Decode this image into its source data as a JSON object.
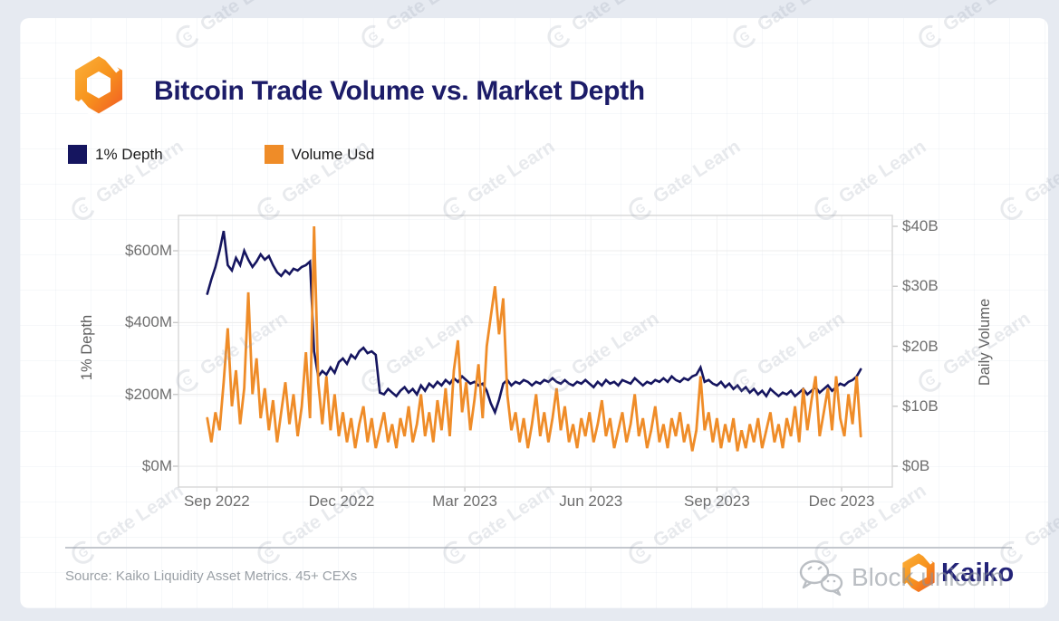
{
  "page": {
    "watermark_text": "Gate Learn",
    "overlay_watermark": "Block unicorn",
    "background_color": "#e6eaf1",
    "card_color": "#ffffff"
  },
  "header": {
    "title": "Bitcoin Trade Volume vs. Market Depth",
    "title_color": "#1c1c68",
    "logo": "kaiko-hexagon"
  },
  "legend": [
    {
      "label": "1% Depth",
      "color": "#15155f"
    },
    {
      "label": "Volume Usd",
      "color": "#ef8c28"
    }
  ],
  "footer": {
    "source": "Source: Kaiko Liquidity Asset Metrics. 45+ CEXs",
    "brand": "Kaiko"
  },
  "chart_data": {
    "type": "line",
    "title": "Bitcoin Trade Volume vs. Market Depth",
    "grid": true,
    "legend_position": "top-left",
    "x_axis": {
      "tick_labels": [
        "Sep 2022",
        "Dec 2022",
        "Mar 2023",
        "Jun 2023",
        "Sep 2023",
        "Dec 2023"
      ],
      "tick_days": [
        7,
        98,
        188,
        280,
        372,
        463
      ],
      "day_min": -21,
      "day_max": 500,
      "note": "day 0 = late Aug 2022, daily data ending mid Dec 2023"
    },
    "left_axis": {
      "label": "1% Depth",
      "unit": "$M",
      "ticks": [
        0,
        200,
        400,
        600
      ],
      "tick_labels": [
        "$0M",
        "$200M",
        "$400M",
        "$600M"
      ],
      "range": [
        0,
        700
      ]
    },
    "right_axis": {
      "label": "Daily Volume",
      "unit": "$B",
      "ticks": [
        0,
        10,
        20,
        30,
        40
      ],
      "tick_labels": [
        "$0B",
        "$10B",
        "$20B",
        "$30B",
        "$40B"
      ],
      "range": [
        0,
        43
      ]
    },
    "series": [
      {
        "name": "1% Depth",
        "axis": "left",
        "color": "#15155f",
        "stroke_width": 2.6,
        "start_day": 0,
        "day_step": 3,
        "values": [
          480,
          520,
          555,
          600,
          655,
          560,
          545,
          580,
          560,
          600,
          575,
          555,
          570,
          590,
          575,
          585,
          560,
          540,
          530,
          545,
          535,
          550,
          545,
          555,
          560,
          570,
          320,
          250,
          265,
          255,
          275,
          260,
          290,
          300,
          285,
          310,
          300,
          320,
          330,
          315,
          320,
          310,
          205,
          200,
          215,
          205,
          195,
          210,
          220,
          205,
          215,
          200,
          225,
          210,
          230,
          220,
          235,
          225,
          240,
          230,
          245,
          235,
          250,
          240,
          230,
          235,
          225,
          230,
          210,
          175,
          150,
          185,
          230,
          240,
          225,
          235,
          230,
          240,
          235,
          225,
          235,
          230,
          240,
          235,
          245,
          235,
          230,
          240,
          230,
          225,
          235,
          230,
          240,
          230,
          220,
          235,
          225,
          240,
          230,
          235,
          225,
          240,
          235,
          230,
          245,
          235,
          225,
          235,
          230,
          240,
          235,
          245,
          235,
          250,
          240,
          235,
          245,
          240,
          250,
          255,
          275,
          235,
          240,
          230,
          225,
          235,
          220,
          230,
          215,
          225,
          210,
          220,
          205,
          215,
          200,
          210,
          195,
          215,
          205,
          195,
          205,
          200,
          210,
          195,
          205,
          215,
          200,
          210,
          220,
          205,
          215,
          225,
          210,
          220,
          230,
          225,
          235,
          240,
          250,
          270
        ]
      },
      {
        "name": "Volume Usd",
        "axis": "right",
        "color": "#ef8c28",
        "stroke_width": 2.8,
        "start_day": 0,
        "day_step": 3,
        "values": [
          8,
          4,
          9,
          6,
          14,
          23,
          10,
          16,
          7,
          13,
          29,
          12,
          18,
          8,
          13,
          6,
          11,
          4,
          9,
          14,
          7,
          12,
          5,
          10,
          19,
          8,
          40,
          14,
          7,
          15,
          6,
          12,
          5,
          9,
          4,
          8,
          3,
          7,
          10,
          4,
          8,
          3,
          6,
          9,
          4,
          7,
          3,
          8,
          5,
          10,
          4,
          7,
          12,
          5,
          9,
          4,
          11,
          6,
          13,
          5,
          16,
          21,
          9,
          14,
          6,
          11,
          17,
          8,
          20,
          25,
          30,
          22,
          28,
          12,
          6,
          9,
          4,
          8,
          3,
          7,
          12,
          5,
          9,
          4,
          8,
          13,
          6,
          10,
          4,
          7,
          3,
          8,
          5,
          9,
          4,
          7,
          11,
          5,
          8,
          3,
          6,
          9,
          4,
          7,
          12,
          5,
          8,
          3,
          6,
          10,
          4,
          7,
          3,
          8,
          5,
          9,
          4,
          7,
          2.5,
          6,
          15,
          6,
          9,
          4,
          8,
          3,
          7,
          4,
          8,
          2.5,
          6,
          3,
          7,
          4,
          8,
          3,
          6,
          9,
          4,
          7,
          3,
          8,
          5,
          10,
          4,
          13,
          6,
          11,
          15,
          5,
          9,
          13,
          6,
          15,
          8,
          5,
          12,
          7,
          15,
          5
        ]
      }
    ]
  }
}
